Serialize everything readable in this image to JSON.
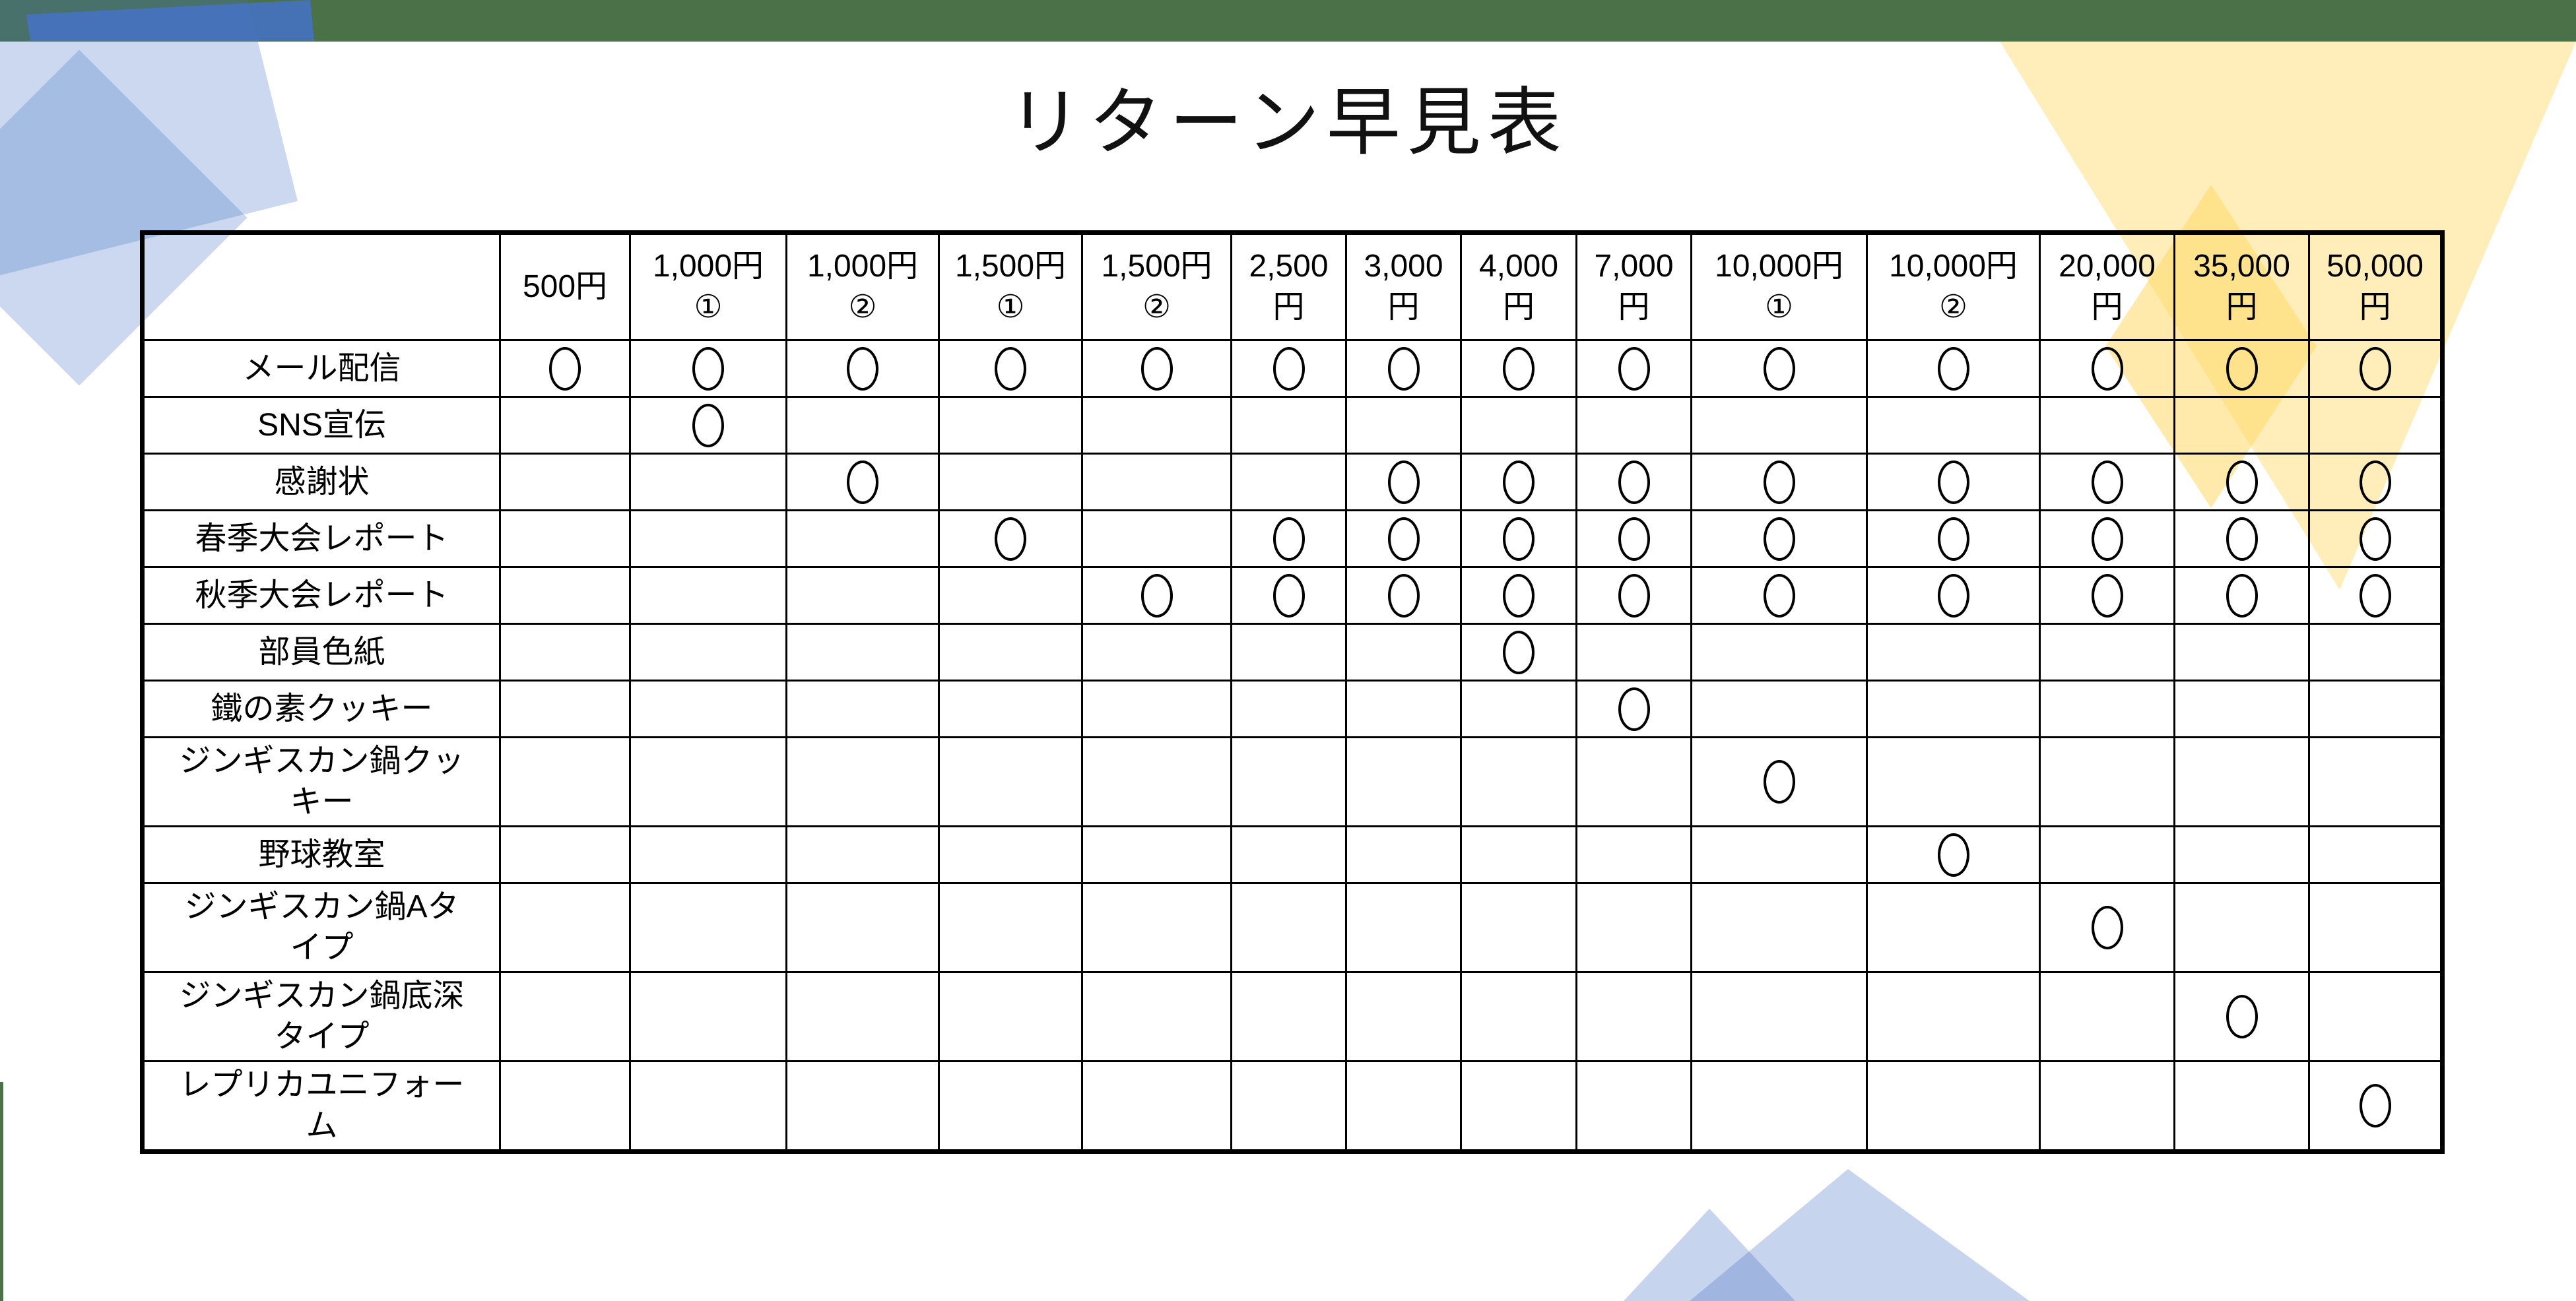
{
  "title": "リターン早見表",
  "table": {
    "columns": [
      "500円",
      "1,000円\n①",
      "1,000円\n②",
      "1,500円\n①",
      "1,500円\n②",
      "2,500\n円",
      "3,000\n円",
      "4,000\n円",
      "7,000\n円",
      "10,000円\n①",
      "10,000円\n②",
      "20,000\n円",
      "35,000\n円",
      "50,000\n円"
    ],
    "mark_symbol": "○",
    "rows": [
      {
        "label": "メール配信",
        "marks": [
          1,
          1,
          1,
          1,
          1,
          1,
          1,
          1,
          1,
          1,
          1,
          1,
          1,
          1
        ]
      },
      {
        "label": "SNS宣伝",
        "marks": [
          0,
          1,
          0,
          0,
          0,
          0,
          0,
          0,
          0,
          0,
          0,
          0,
          0,
          0
        ]
      },
      {
        "label": "感謝状",
        "marks": [
          0,
          0,
          1,
          0,
          0,
          0,
          1,
          1,
          1,
          1,
          1,
          1,
          1,
          1
        ]
      },
      {
        "label": "春季大会レポート",
        "marks": [
          0,
          0,
          0,
          1,
          0,
          1,
          1,
          1,
          1,
          1,
          1,
          1,
          1,
          1
        ]
      },
      {
        "label": "秋季大会レポート",
        "marks": [
          0,
          0,
          0,
          0,
          1,
          1,
          1,
          1,
          1,
          1,
          1,
          1,
          1,
          1
        ]
      },
      {
        "label": "部員色紙",
        "marks": [
          0,
          0,
          0,
          0,
          0,
          0,
          0,
          1,
          0,
          0,
          0,
          0,
          0,
          0
        ]
      },
      {
        "label": "鐵の素クッキー",
        "marks": [
          0,
          0,
          0,
          0,
          0,
          0,
          0,
          0,
          1,
          0,
          0,
          0,
          0,
          0
        ]
      },
      {
        "label": "ジンギスカン鍋クッキー",
        "marks": [
          0,
          0,
          0,
          0,
          0,
          0,
          0,
          0,
          0,
          1,
          0,
          0,
          0,
          0
        ]
      },
      {
        "label": "野球教室",
        "marks": [
          0,
          0,
          0,
          0,
          0,
          0,
          0,
          0,
          0,
          0,
          1,
          0,
          0,
          0
        ]
      },
      {
        "label": "ジンギスカン鍋Aタイプ",
        "marks": [
          0,
          0,
          0,
          0,
          0,
          0,
          0,
          0,
          0,
          0,
          0,
          1,
          0,
          0
        ]
      },
      {
        "label": "ジンギスカン鍋底深タイプ",
        "marks": [
          0,
          0,
          0,
          0,
          0,
          0,
          0,
          0,
          0,
          0,
          0,
          0,
          1,
          0
        ]
      },
      {
        "label": "レプリカユニフォーム",
        "marks": [
          0,
          0,
          0,
          0,
          0,
          0,
          0,
          0,
          0,
          0,
          0,
          0,
          0,
          1
        ]
      }
    ]
  },
  "colors": {
    "top_bar_green": "#4a7148",
    "accent_blue": "#4472c4",
    "light_blue_overlay": "rgba(68,114,196,0.28)",
    "pale_yellow_overlay": "rgba(255,217,102,0.5)",
    "table_border": "#000000",
    "background": "#ffffff"
  }
}
